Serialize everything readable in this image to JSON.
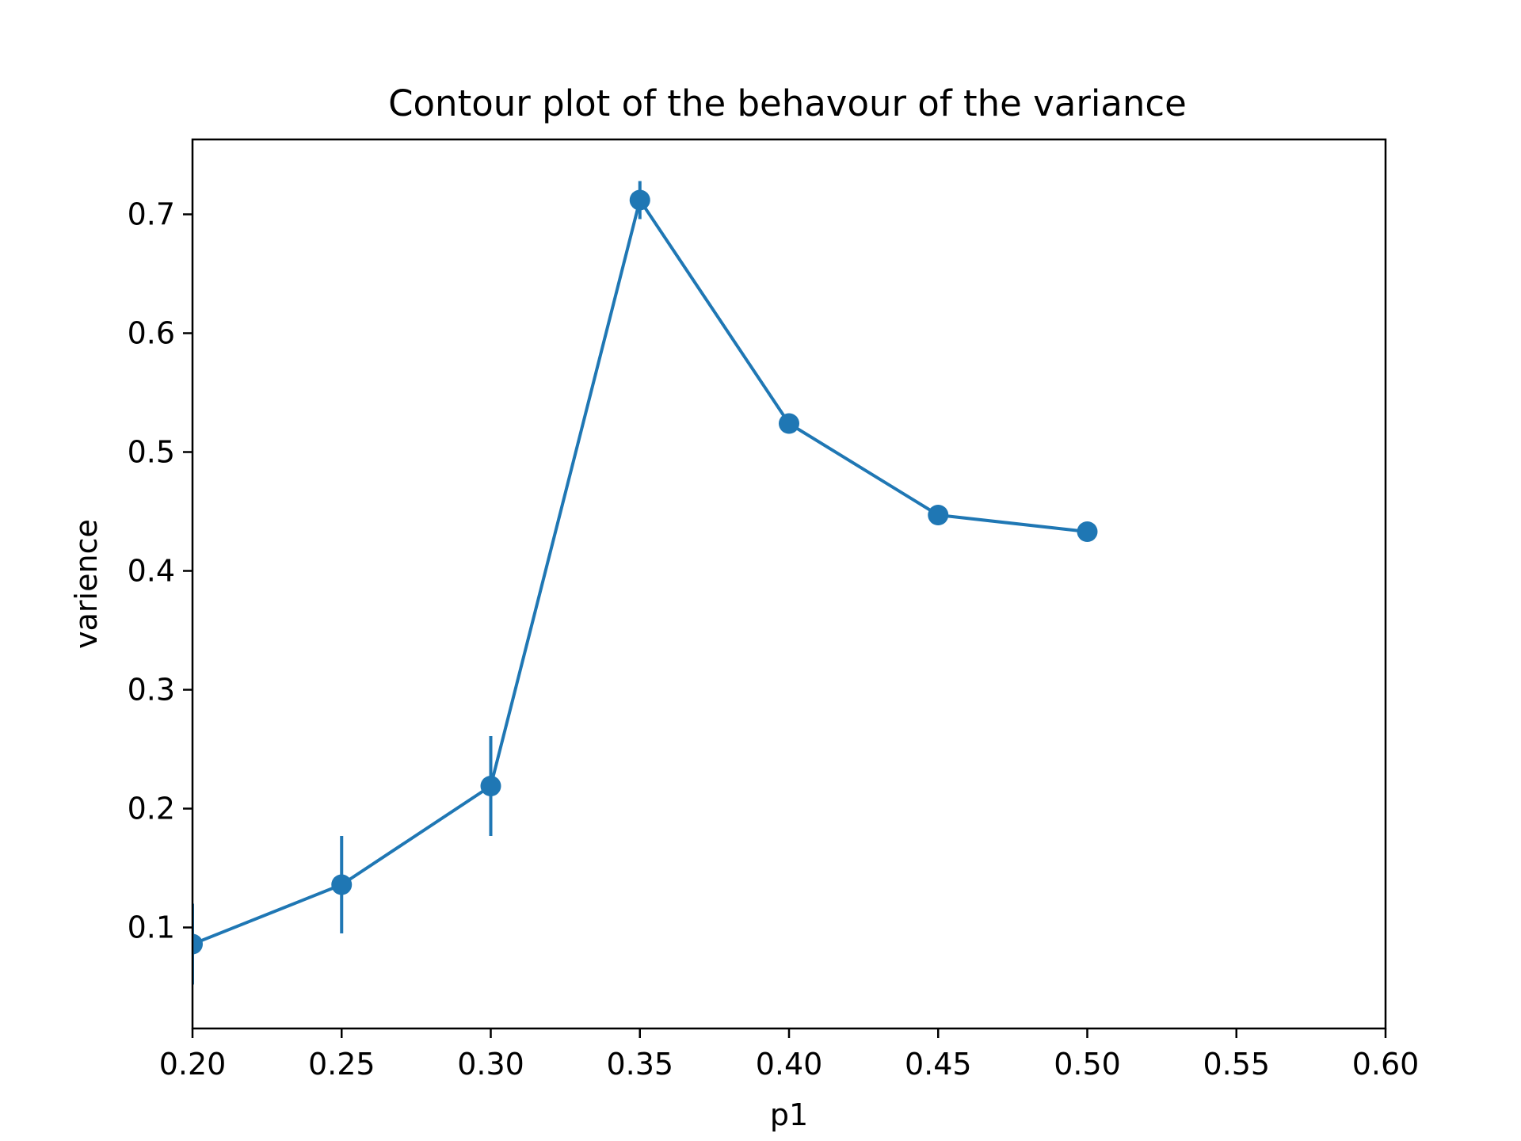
{
  "chart_data": {
    "type": "line",
    "title": "Contour plot of the behavour of the variance",
    "xlabel": "p1",
    "ylabel": "varience",
    "xlim": [
      0.2,
      0.6
    ],
    "ylim": [
      0.015,
      0.763
    ],
    "xticks": [
      0.2,
      0.25,
      0.3,
      0.35,
      0.4,
      0.45,
      0.5,
      0.55,
      0.6
    ],
    "xtick_labels": [
      "0.20",
      "0.25",
      "0.30",
      "0.35",
      "0.40",
      "0.45",
      "0.50",
      "0.55",
      "0.60"
    ],
    "yticks": [
      0.1,
      0.2,
      0.3,
      0.4,
      0.5,
      0.6,
      0.7
    ],
    "ytick_labels": [
      "0.1",
      "0.2",
      "0.3",
      "0.4",
      "0.5",
      "0.6",
      "0.7"
    ],
    "grid": false,
    "series": [
      {
        "color": "#1f77b4",
        "marker": "circle",
        "x": [
          0.2,
          0.25,
          0.3,
          0.35,
          0.4,
          0.45,
          0.5
        ],
        "y": [
          0.086,
          0.136,
          0.219,
          0.712,
          0.524,
          0.447,
          0.433
        ],
        "yerr": [
          0.034,
          0.041,
          0.042,
          0.016,
          0.0,
          0.0,
          0.0
        ]
      }
    ]
  }
}
